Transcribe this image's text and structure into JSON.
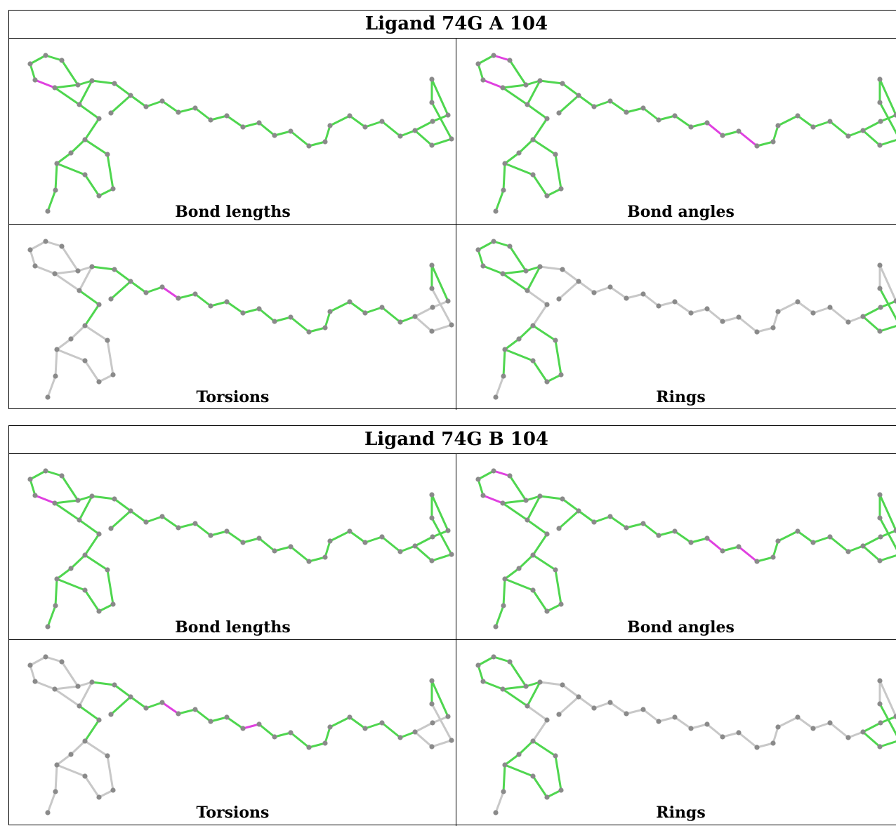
{
  "colors": {
    "ok": "#4fd64f",
    "outlier": "#e040e0",
    "unused": "#c8c8c8",
    "atom": "#8a8a8a"
  },
  "ligands": [
    {
      "title": "Ligand 74G A 104",
      "panels": [
        {
          "label": "Bond lengths",
          "outliers": [
            [
              2,
              3
            ],
            [
              1,
              2
            ],
            [
              5,
              15
            ]
          ]
        },
        {
          "label": "Bond angles",
          "outliers": [
            [
              0,
              1
            ],
            [
              1,
              2
            ],
            [
              2,
              3
            ],
            [
              2,
              9
            ],
            [
              5,
              15
            ],
            [
              27,
              28
            ],
            [
              27,
              29
            ],
            [
              28,
              33
            ],
            [
              29,
              30
            ]
          ]
        },
        {
          "label": "Torsions",
          "outliers": [
            [
              8,
              17
            ],
            [
              21,
              22
            ],
            [
              5,
              15
            ]
          ]
        },
        {
          "label": "Rings",
          "outliers": []
        }
      ]
    },
    {
      "title": "Ligand 74G B 104",
      "panels": [
        {
          "label": "Bond lengths",
          "outliers": [
            [
              2,
              3
            ],
            [
              1,
              2
            ],
            [
              5,
              15
            ],
            [
              27,
              29
            ]
          ]
        },
        {
          "label": "Bond angles",
          "outliers": [
            [
              0,
              1
            ],
            [
              1,
              2
            ],
            [
              2,
              3
            ],
            [
              2,
              9
            ],
            [
              5,
              15
            ],
            [
              27,
              28
            ],
            [
              27,
              29
            ],
            [
              28,
              33
            ],
            [
              29,
              30
            ],
            [
              13,
              11
            ]
          ]
        },
        {
          "label": "Torsions",
          "outliers": [
            [
              8,
              17
            ],
            [
              21,
              22
            ],
            [
              5,
              15
            ],
            [
              26,
              27
            ]
          ]
        },
        {
          "label": "Rings",
          "outliers": []
        }
      ]
    }
  ]
}
